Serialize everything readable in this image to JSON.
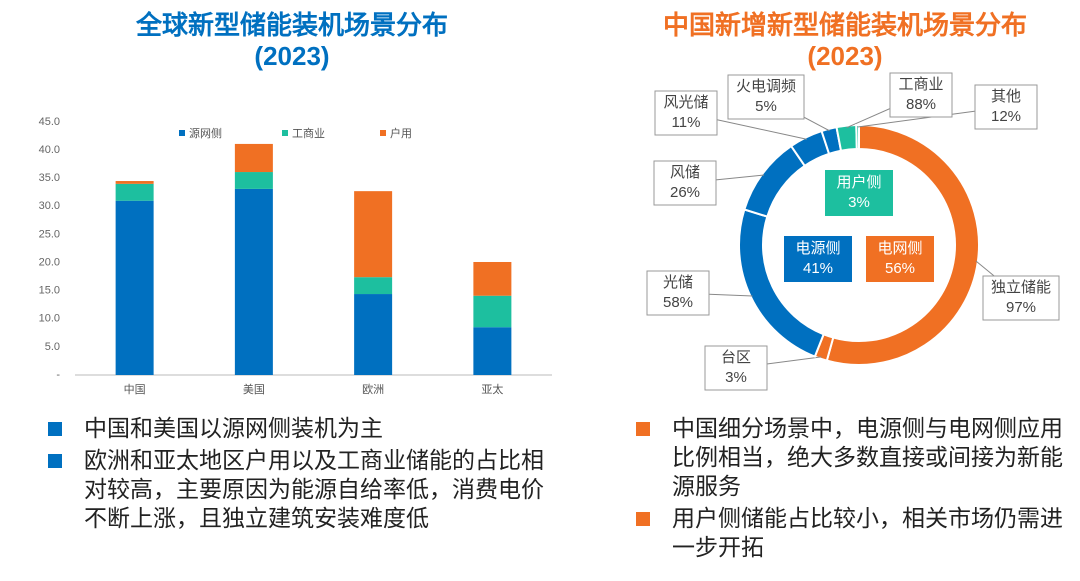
{
  "chart_data": [
    {
      "type": "stacked_bar",
      "title": "全球新型储能装机场景分布",
      "subtitle": "(2023)",
      "categories": [
        "中国",
        "美国",
        "欧洲",
        "亚太"
      ],
      "series": [
        {
          "name": "源网侧",
          "color": "#0070c0",
          "values": [
            31.0,
            33.1,
            14.4,
            8.5
          ]
        },
        {
          "name": "工商业",
          "color": "#1dbf9f",
          "values": [
            3.0,
            3.0,
            3.0,
            5.6
          ]
        },
        {
          "name": "户用",
          "color": "#f07023",
          "values": [
            0.5,
            5.0,
            15.3,
            6.0
          ]
        }
      ],
      "ylim": [
        0,
        45
      ],
      "yticks": [
        {
          "value": 0,
          "label": "-"
        },
        {
          "value": 5,
          "label": "5.0"
        },
        {
          "value": 10,
          "label": "10.0"
        },
        {
          "value": 15,
          "label": "15.0"
        },
        {
          "value": 20,
          "label": "20.0"
        },
        {
          "value": 25,
          "label": "25.0"
        },
        {
          "value": 30,
          "label": "30.0"
        },
        {
          "value": 35,
          "label": "35.0"
        },
        {
          "value": 40,
          "label": "40.0"
        },
        {
          "value": 45,
          "label": "45.0"
        }
      ],
      "grid": false,
      "legend": "top"
    },
    {
      "type": "donut",
      "title": "中国新增新型储能装机场景分布",
      "subtitle": "(2023)",
      "groups": [
        {
          "name": "电网侧",
          "value": 56,
          "value_label": "56%",
          "color": "#f07023",
          "segments": [
            {
              "name": "独立储能",
              "value": 97,
              "value_label": "97%"
            },
            {
              "name": "台区",
              "value": 3,
              "value_label": "3%"
            }
          ]
        },
        {
          "name": "电源侧",
          "value": 41,
          "value_label": "41%",
          "color": "#0070c0",
          "segments": [
            {
              "name": "光储",
              "value": 58,
              "value_label": "58%"
            },
            {
              "name": "风储",
              "value": 26,
              "value_label": "26%"
            },
            {
              "name": "风光储",
              "value": 11,
              "value_label": "11%"
            },
            {
              "name": "火电调频",
              "value": 5,
              "value_label": "5%"
            }
          ]
        },
        {
          "name": "用户侧",
          "value": 3,
          "value_label": "3%",
          "color": "#1dbf9f",
          "segments": [
            {
              "name": "工商业",
              "value": 88,
              "value_label": "88%"
            },
            {
              "name": "其他",
              "value": 12,
              "value_label": "12%"
            }
          ]
        }
      ]
    }
  ],
  "bullets": {
    "left": [
      "中国和美国以源网侧装机为主",
      "欧洲和亚太地区户用以及工商业储能的占比相对较高，主要原因为能源自给率低，消费电价不断上涨，且独立建筑安装难度低"
    ],
    "right": [
      "中国细分场景中，电源侧与电网侧应用比例相当，绝大多数直接或间接为新能源服务",
      "用户侧储能占比较小，相关市场仍需进一步开拓"
    ]
  }
}
